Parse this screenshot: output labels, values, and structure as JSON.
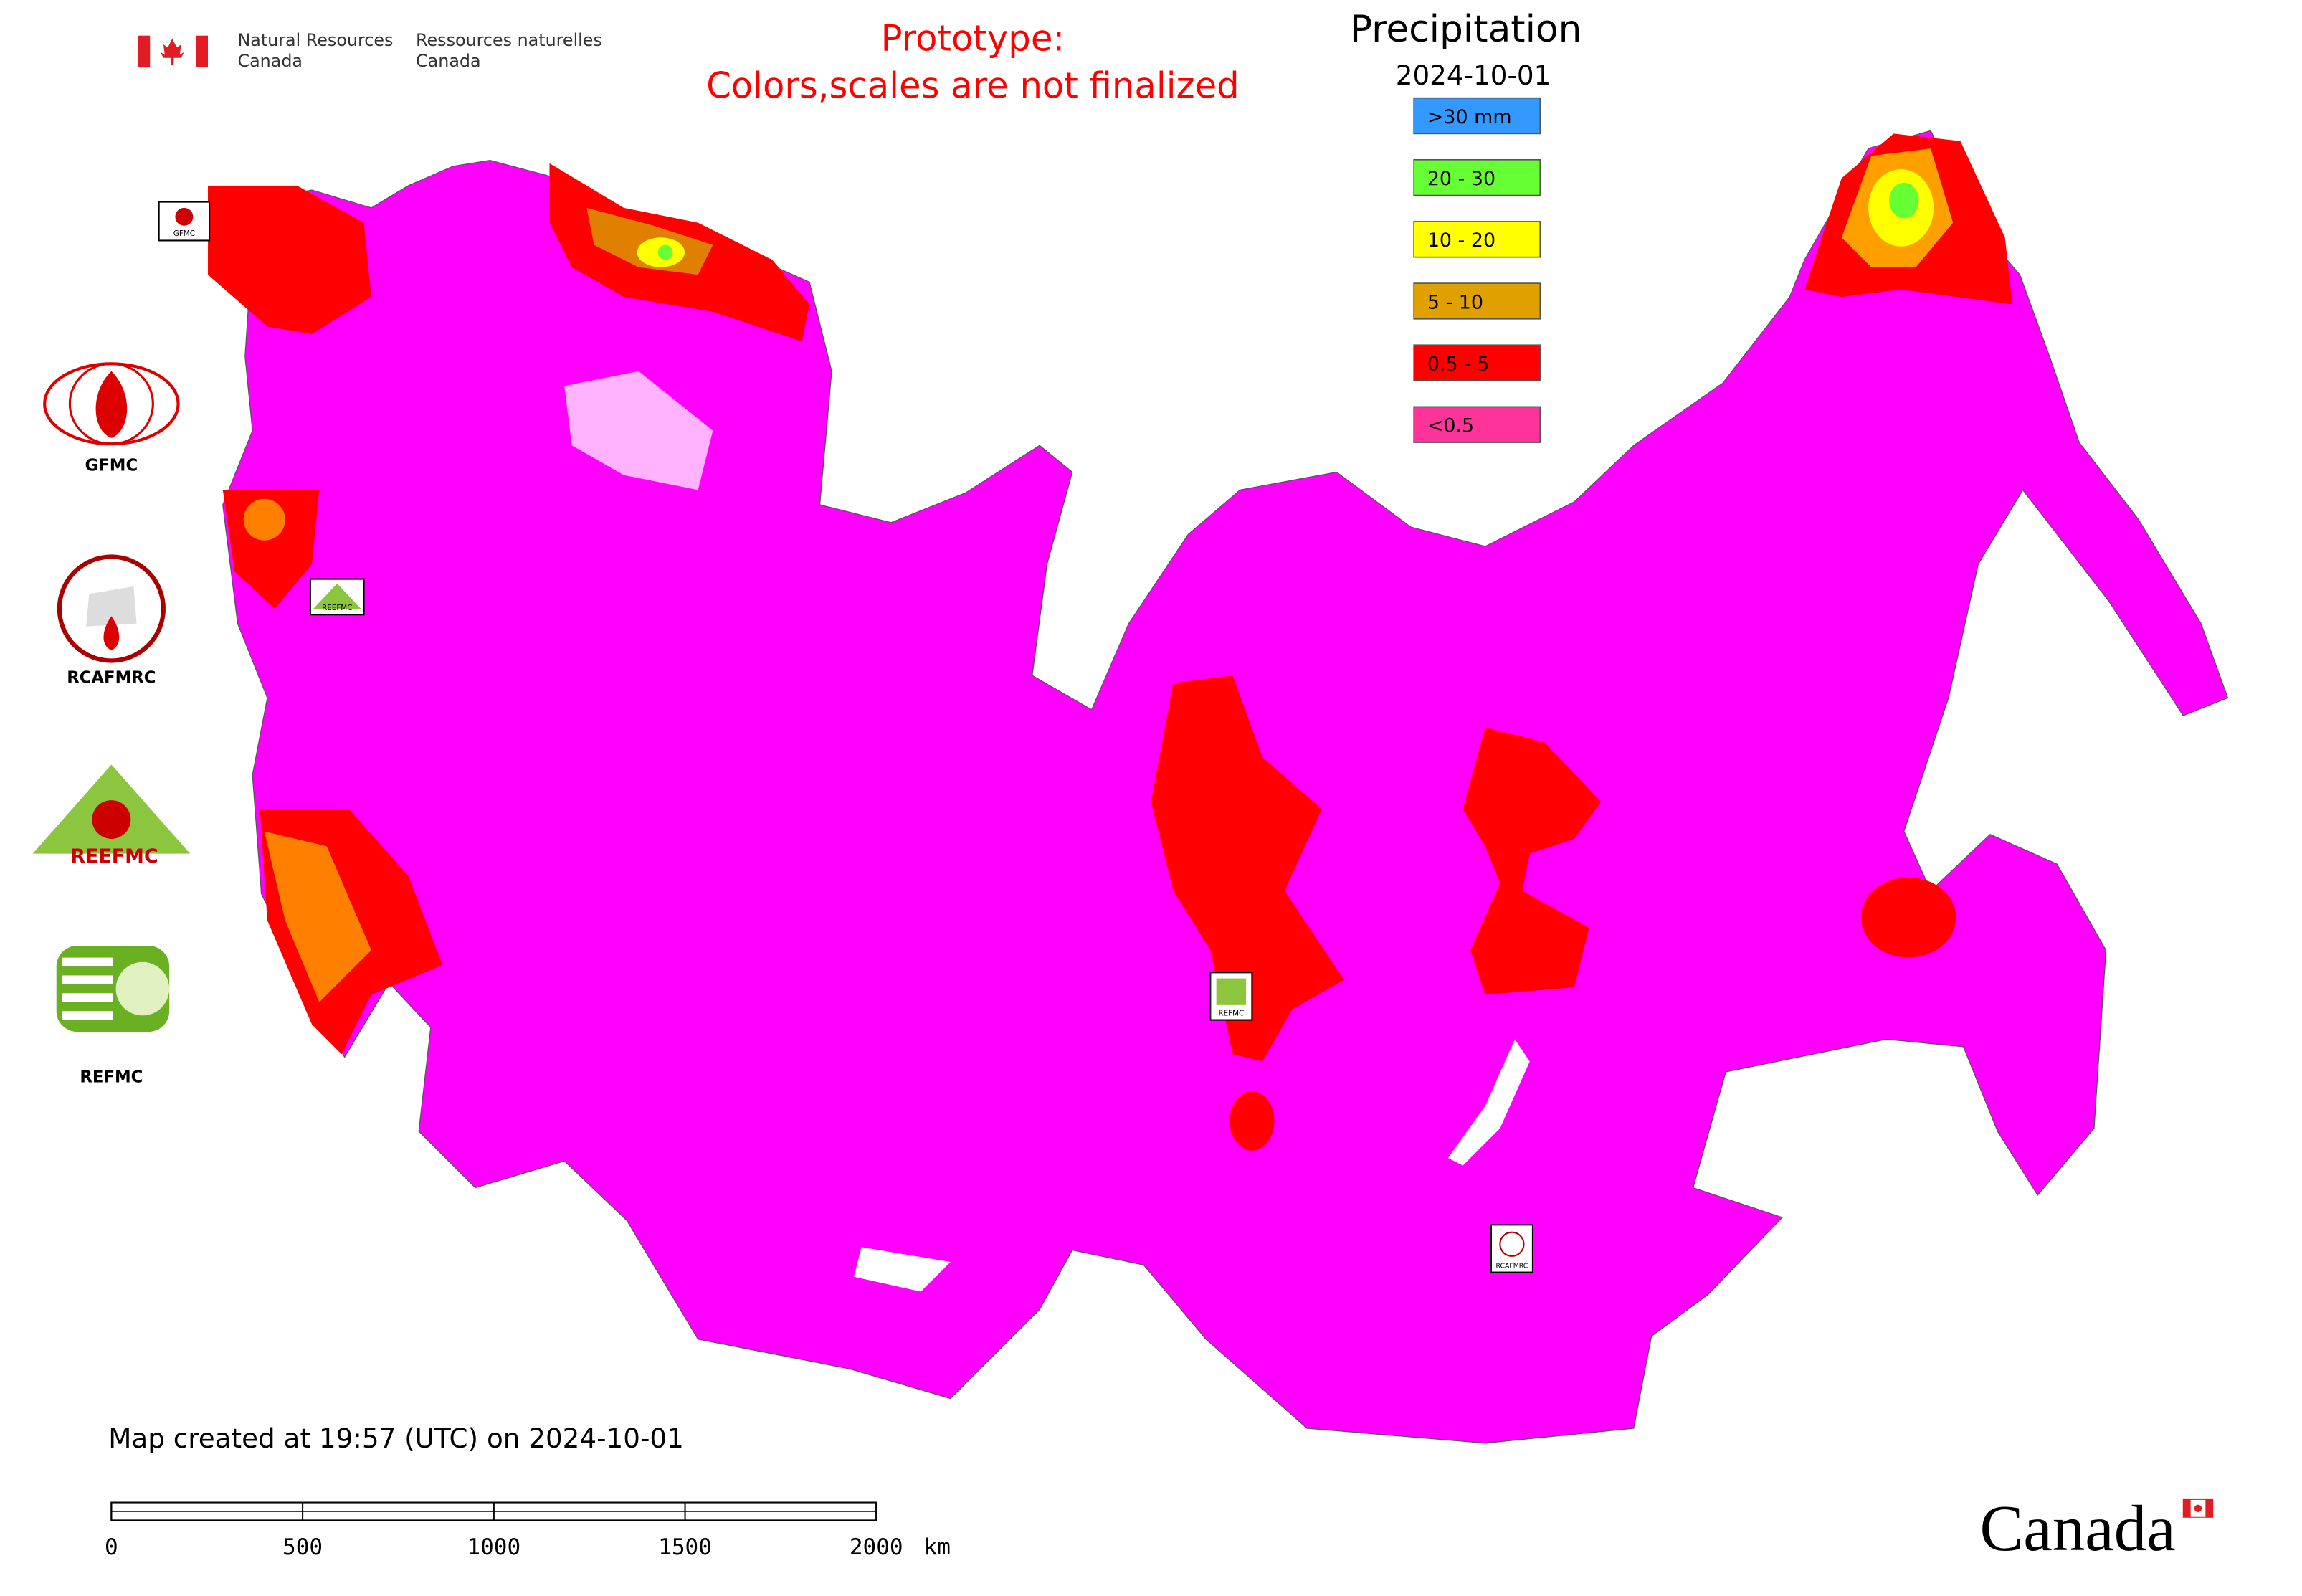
{
  "header": {
    "nrcan_en": [
      "Natural Resources",
      "Canada"
    ],
    "nrcan_fr": [
      "Ressources naturelles",
      "Canada"
    ],
    "notice": [
      "Prototype:",
      "Colors,scales are not finalized"
    ],
    "title": "Precipitation",
    "date": "2024-10-01"
  },
  "legend": [
    {
      "label": ">30 mm",
      "color": "#3399ff"
    },
    {
      "label": "20 - 30",
      "color": "#66ff33"
    },
    {
      "label": "10 - 20",
      "color": "#ffff00"
    },
    {
      "label": "5 - 10",
      "color": "#e0a000"
    },
    {
      "label": "0.5 - 5",
      "color": "#ff0000"
    },
    {
      "label": "<0.5",
      "color": "#ff3399"
    }
  ],
  "logos": [
    "GFMC",
    "RCAFMRC",
    "REEFMC",
    "REFMC"
  ],
  "map_badges": [
    "GFMC",
    "REEFMC",
    "REFMC",
    "RCAFMRC"
  ],
  "footer": {
    "created": "Map created at 19:57 (UTC) on 2024-10-01",
    "wordmark": "Canada"
  },
  "scale_bar": {
    "xlim": [
      0,
      2000
    ],
    "ticks": [
      0,
      500,
      1000,
      1500,
      2000
    ],
    "unit": "km"
  }
}
